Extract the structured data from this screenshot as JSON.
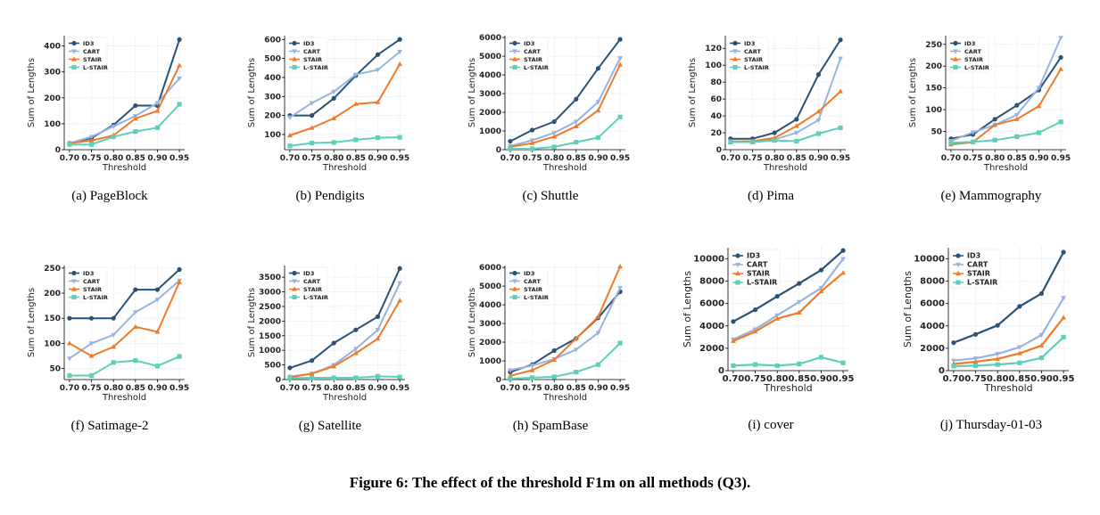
{
  "figure_caption": "Figure 6: The effect of the threshold F1m on all methods (Q3).",
  "series_names": [
    "ID3",
    "CART",
    "STAIR",
    "L-STAIR"
  ],
  "series_colors": [
    "#2b5275",
    "#98b3e0",
    "#ef7b2a",
    "#5ecfb8"
  ],
  "series_markers": [
    "circle",
    "triangle-down",
    "triangle-up",
    "square"
  ],
  "chart_data": [
    {
      "type": "line",
      "caption": "(a) PageBlock",
      "xlabel": "Threshold",
      "ylabel": "Sum of Lengths",
      "x": [
        0.7,
        0.75,
        0.8,
        0.85,
        0.9,
        0.95
      ],
      "xticks": [
        "0.70",
        "0.75",
        "0.80",
        "0.85",
        "0.90",
        "0.95"
      ],
      "ylim": [
        0,
        440
      ],
      "yticks": [
        0,
        100,
        200,
        300,
        400
      ],
      "legend": "top-left",
      "grid": true,
      "series": [
        {
          "name": "ID3",
          "values": [
            25,
            45,
            95,
            170,
            170,
            425
          ]
        },
        {
          "name": "CART",
          "values": [
            25,
            50,
            90,
            130,
            180,
            275
          ]
        },
        {
          "name": "STAIR",
          "values": [
            25,
            35,
            55,
            120,
            150,
            325
          ]
        },
        {
          "name": "L-STAIR",
          "values": [
            20,
            20,
            50,
            70,
            85,
            175
          ]
        }
      ]
    },
    {
      "type": "line",
      "caption": "(b) Pendigits",
      "xlabel": "Threshold",
      "ylabel": "Sum of Lengths",
      "x": [
        0.7,
        0.75,
        0.8,
        0.85,
        0.9,
        0.95
      ],
      "xticks": [
        "0.70",
        "0.75",
        "0.80",
        "0.85",
        "0.90",
        "0.95"
      ],
      "ylim": [
        20,
        620
      ],
      "yticks": [
        100,
        200,
        300,
        400,
        500,
        600
      ],
      "legend": "top-left",
      "grid": true,
      "series": [
        {
          "name": "ID3",
          "values": [
            200,
            200,
            290,
            410,
            520,
            600
          ]
        },
        {
          "name": "CART",
          "values": [
            190,
            265,
            325,
            415,
            440,
            535
          ]
        },
        {
          "name": "STAIR",
          "values": [
            95,
            135,
            185,
            260,
            270,
            470
          ]
        },
        {
          "name": "L-STAIR",
          "values": [
            40,
            55,
            58,
            72,
            83,
            85
          ]
        }
      ]
    },
    {
      "type": "line",
      "caption": "(c) Shuttle",
      "xlabel": "Threshold",
      "ylabel": "Sum of Lengths",
      "x": [
        0.7,
        0.75,
        0.8,
        0.85,
        0.9,
        0.95
      ],
      "xticks": [
        "0.70",
        "0.75",
        "0.80",
        "0.85",
        "0.90",
        "0.95"
      ],
      "ylim": [
        0,
        6100
      ],
      "yticks": [
        0,
        1000,
        2000,
        3000,
        4000,
        5000,
        6000
      ],
      "legend": "top-left",
      "grid": true,
      "series": [
        {
          "name": "ID3",
          "values": [
            450,
            1050,
            1500,
            2700,
            4350,
            5900
          ]
        },
        {
          "name": "CART",
          "values": [
            200,
            500,
            900,
            1500,
            2550,
            4900
          ]
        },
        {
          "name": "STAIR",
          "values": [
            150,
            350,
            700,
            1250,
            2100,
            4550
          ]
        },
        {
          "name": "L-STAIR",
          "values": [
            50,
            50,
            150,
            400,
            650,
            1750
          ]
        }
      ]
    },
    {
      "type": "line",
      "caption": "(d) Pima",
      "xlabel": "Threshold",
      "ylabel": "Sum of Lengths",
      "x": [
        0.7,
        0.75,
        0.8,
        0.85,
        0.9,
        0.95
      ],
      "xticks": [
        "0.70",
        "0.75",
        "0.80",
        "0.85",
        "0.90",
        "0.95"
      ],
      "ylim": [
        0,
        135
      ],
      "yticks": [
        0,
        20,
        40,
        60,
        80,
        100,
        120
      ],
      "legend": "top-left",
      "grid": true,
      "series": [
        {
          "name": "ID3",
          "values": [
            13,
            13,
            20,
            36,
            89,
            130
          ]
        },
        {
          "name": "CART",
          "values": [
            10,
            10,
            12,
            20,
            35,
            108
          ]
        },
        {
          "name": "STAIR",
          "values": [
            9,
            10,
            14,
            28,
            45,
            69
          ]
        },
        {
          "name": "L-STAIR",
          "values": [
            9,
            9,
            11,
            10,
            19,
            26
          ]
        }
      ]
    },
    {
      "type": "line",
      "caption": "(e) Mammography",
      "xlabel": "Threshold",
      "ylabel": "Sum of Lengths",
      "x": [
        0.7,
        0.75,
        0.8,
        0.85,
        0.9,
        0.95
      ],
      "xticks": [
        "0.70",
        "0.75",
        "0.80",
        "0.85",
        "0.90",
        "0.95"
      ],
      "ylim": [
        8,
        270
      ],
      "yticks": [
        50,
        100,
        150,
        200,
        250
      ],
      "legend": "top-left",
      "grid": true,
      "series": [
        {
          "name": "ID3",
          "values": [
            33,
            43,
            78,
            110,
            145,
            220
          ]
        },
        {
          "name": "CART",
          "values": [
            28,
            48,
            65,
            88,
            150,
            265
          ]
        },
        {
          "name": "STAIR",
          "values": [
            20,
            25,
            65,
            78,
            108,
            193
          ]
        },
        {
          "name": "L-STAIR",
          "values": [
            24,
            26,
            30,
            38,
            47,
            72
          ]
        }
      ]
    },
    {
      "type": "line",
      "caption": "(f) Satimage-2",
      "xlabel": "Threshold",
      "ylabel": "Sum of Lengths",
      "x": [
        0.7,
        0.75,
        0.8,
        0.85,
        0.9,
        0.95
      ],
      "xticks": [
        "0.70",
        "0.75",
        "0.80",
        "0.85",
        "0.90",
        "0.95"
      ],
      "ylim": [
        28,
        255
      ],
      "yticks": [
        50,
        100,
        150,
        200,
        250
      ],
      "legend": "top-left",
      "grid": true,
      "series": [
        {
          "name": "ID3",
          "values": [
            150,
            150,
            150,
            207,
            207,
            247
          ]
        },
        {
          "name": "CART",
          "values": [
            70,
            100,
            117,
            162,
            187,
            225
          ]
        },
        {
          "name": "STAIR",
          "values": [
            100,
            75,
            93,
            133,
            123,
            222
          ]
        },
        {
          "name": "L-STAIR",
          "values": [
            36,
            36,
            62,
            66,
            55,
            74
          ]
        }
      ]
    },
    {
      "type": "line",
      "caption": "(g) Satellite",
      "xlabel": "Threshold",
      "ylabel": "Sum of Lengths",
      "x": [
        0.7,
        0.75,
        0.8,
        0.85,
        0.9,
        0.95
      ],
      "xticks": [
        "0.70",
        "0.75",
        "0.80",
        "0.85",
        "0.90",
        "0.95"
      ],
      "ylim": [
        0,
        3900
      ],
      "yticks": [
        0,
        500,
        1000,
        1500,
        2000,
        2500,
        3000,
        3500
      ],
      "legend": "top-left",
      "grid": true,
      "series": [
        {
          "name": "ID3",
          "values": [
            400,
            650,
            1250,
            1700,
            2150,
            3800
          ]
        },
        {
          "name": "CART",
          "values": [
            100,
            200,
            500,
            1050,
            1700,
            3300
          ]
        },
        {
          "name": "STAIR",
          "values": [
            80,
            200,
            450,
            900,
            1400,
            2700
          ]
        },
        {
          "name": "L-STAIR",
          "values": [
            50,
            60,
            60,
            60,
            110,
            90
          ]
        }
      ]
    },
    {
      "type": "line",
      "caption": "(h) SpamBase",
      "xlabel": "Threshold",
      "ylabel": "Sum of Lengths",
      "x": [
        0.7,
        0.75,
        0.8,
        0.85,
        0.9,
        0.95
      ],
      "xticks": [
        "0.70",
        "0.75",
        "0.80",
        "0.85",
        "0.90",
        "0.95"
      ],
      "ylim": [
        0,
        6100
      ],
      "yticks": [
        0,
        1000,
        2000,
        3000,
        4000,
        5000,
        6000
      ],
      "legend": "top-left",
      "grid": true,
      "series": [
        {
          "name": "ID3",
          "values": [
            400,
            800,
            1550,
            2200,
            3300,
            4700
          ]
        },
        {
          "name": "CART",
          "values": [
            500,
            750,
            1100,
            1600,
            2500,
            4900
          ]
        },
        {
          "name": "STAIR",
          "values": [
            200,
            500,
            1050,
            2200,
            3350,
            6050
          ]
        },
        {
          "name": "L-STAIR",
          "values": [
            50,
            100,
            150,
            400,
            800,
            1950
          ]
        }
      ]
    },
    {
      "type": "line",
      "caption": "(i) cover",
      "xlabel": "Threshold",
      "ylabel": "Sum of Lengths",
      "x": [
        0.7,
        0.75,
        0.8,
        0.85,
        0.9,
        0.95
      ],
      "xticks": [
        "0.70",
        "0.75",
        "0.80",
        "0.85",
        "0.90",
        "0.95"
      ],
      "ylim": [
        0,
        11000
      ],
      "yticks": [
        0,
        2000,
        4000,
        6000,
        8000,
        10000
      ],
      "legend": "top-left",
      "grid": true,
      "series": [
        {
          "name": "ID3",
          "values": [
            4400,
            5450,
            6650,
            7800,
            9000,
            10750
          ]
        },
        {
          "name": "CART",
          "values": [
            2800,
            3700,
            4950,
            6150,
            7400,
            10000
          ]
        },
        {
          "name": "STAIR",
          "values": [
            2650,
            3500,
            4650,
            5200,
            7100,
            8750
          ]
        },
        {
          "name": "L-STAIR",
          "values": [
            450,
            550,
            450,
            600,
            1200,
            700
          ]
        }
      ]
    },
    {
      "type": "line",
      "caption": "(j) Thursday-01-03",
      "xlabel": "Threshold",
      "ylabel": "Sum of Lengths",
      "x": [
        0.7,
        0.75,
        0.8,
        0.85,
        0.9,
        0.95
      ],
      "xticks": [
        "0.70",
        "0.75",
        "0.80",
        "0.85",
        "0.90",
        "0.95"
      ],
      "ylim": [
        0,
        11000
      ],
      "yticks": [
        0,
        2000,
        4000,
        6000,
        8000,
        10000
      ],
      "legend": "top-left",
      "grid": true,
      "series": [
        {
          "name": "ID3",
          "values": [
            2500,
            3250,
            4050,
            5750,
            6900,
            10600
          ]
        },
        {
          "name": "CART",
          "values": [
            900,
            1100,
            1500,
            2100,
            3200,
            6500
          ]
        },
        {
          "name": "STAIR",
          "values": [
            600,
            800,
            1050,
            1550,
            2250,
            4750
          ]
        },
        {
          "name": "L-STAIR",
          "values": [
            400,
            450,
            550,
            700,
            1150,
            3000
          ]
        }
      ]
    }
  ]
}
